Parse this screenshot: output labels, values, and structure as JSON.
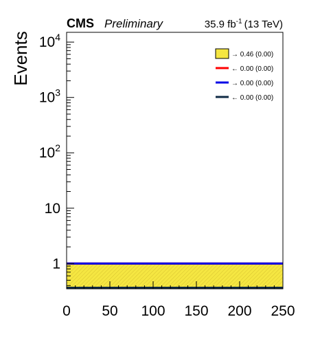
{
  "header": {
    "experiment": "CMS",
    "status": "Preliminary",
    "lumi_value": "35.9 fb",
    "lumi_exp": "-1",
    "energy": "(13 TeV)"
  },
  "chart_data": {
    "type": "area",
    "ylabel": "Events",
    "xlabel": "",
    "xlim": [
      0,
      250
    ],
    "ylim": [
      0.35,
      15000
    ],
    "y_scale": "log",
    "grid": false,
    "legend_position": "top-right",
    "x_ticks": [
      0,
      50,
      100,
      150,
      200,
      250
    ],
    "x_tick_labels": [
      "0",
      "50",
      "100",
      "150",
      "200",
      "250"
    ],
    "y_ticks": [
      {
        "value": 1,
        "base": "1",
        "exp": ""
      },
      {
        "value": 10,
        "base": "10",
        "exp": ""
      },
      {
        "value": 100,
        "base": "10",
        "exp": "2"
      },
      {
        "value": 1000,
        "base": "10",
        "exp": "3"
      },
      {
        "value": 10000,
        "base": "10",
        "exp": "4"
      }
    ],
    "series": [
      {
        "label": "→ 0.46 (0.00)",
        "kind": "filled",
        "color": "#f5e642",
        "x": [
          0,
          250
        ],
        "y": [
          1.0,
          1.0
        ]
      },
      {
        "label": "← 0.00 (0.00)",
        "kind": "line",
        "color": "#ff0000",
        "x": [
          0,
          250
        ],
        "y": [
          1.0,
          1.0
        ]
      },
      {
        "label": "→ 0.00 (0.00)",
        "kind": "line",
        "color": "#0000e6",
        "x": [
          0,
          250
        ],
        "y": [
          1.0,
          1.0
        ]
      },
      {
        "label": "← 0.00 (0.00)",
        "kind": "line",
        "color": "#0f2a44",
        "x": [
          0,
          250
        ],
        "y": [
          0.35,
          0.35
        ]
      }
    ]
  }
}
